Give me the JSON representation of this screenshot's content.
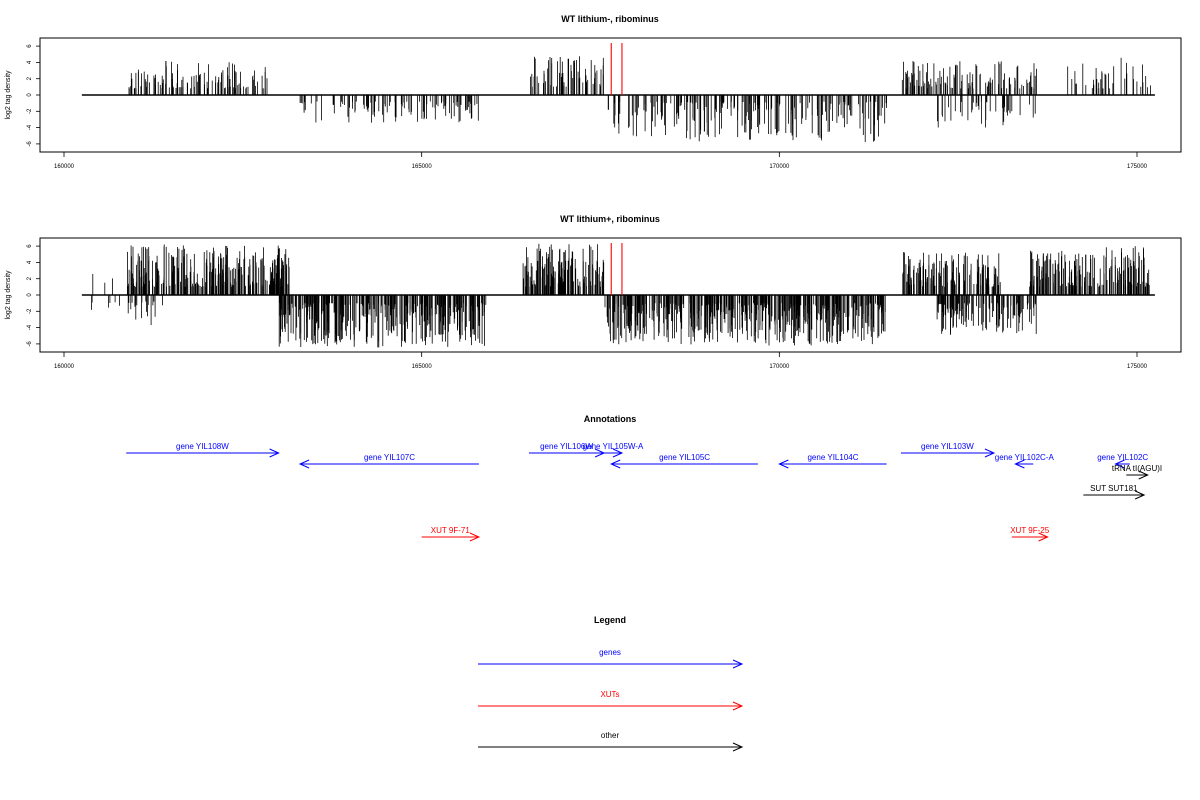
{
  "chart_data": [
    {
      "type": "bar",
      "title": "WT lithium-, ribominus",
      "xlabel": "",
      "ylabel": "log2 tag density",
      "xlim": [
        159900,
        175900
      ],
      "ylim": [
        -7,
        7
      ],
      "xticks": [
        160000,
        165000,
        170000,
        175000
      ],
      "xtick_labels": [
        "160000",
        "165000",
        "170000",
        "175000"
      ],
      "yticks": [
        6,
        4,
        2,
        0,
        -2,
        -4,
        -6
      ],
      "ytick_labels": [
        "6",
        "4",
        "2",
        "0",
        "-2",
        "-4",
        "-6"
      ],
      "baseline": [
        160250,
        175250
      ],
      "markers": [
        167650,
        167800
      ],
      "marker_color": "#ff0000",
      "bar_color": "#000000",
      "regions": [
        {
          "start": 160870,
          "end": 162850,
          "sign": 1,
          "density": 0.45,
          "max": 4.2,
          "min": 0.8
        },
        {
          "start": 163300,
          "end": 165800,
          "sign": -1,
          "density": 0.35,
          "max": 3.4,
          "min": 0.8
        },
        {
          "start": 166500,
          "end": 167550,
          "sign": 1,
          "density": 0.5,
          "max": 4.8,
          "min": 1.0
        },
        {
          "start": 167600,
          "end": 171500,
          "sign": -1,
          "density": 0.45,
          "max": 5.8,
          "min": 0.8
        },
        {
          "start": 171700,
          "end": 173600,
          "sign": 1,
          "density": 0.5,
          "max": 4.2,
          "min": 0.8
        },
        {
          "start": 172200,
          "end": 173600,
          "sign": -1,
          "density": 0.25,
          "max": 4.0,
          "min": 0.8
        },
        {
          "start": 174000,
          "end": 175200,
          "sign": 1,
          "density": 0.25,
          "max": 4.6,
          "min": 0.8
        }
      ]
    },
    {
      "type": "bar",
      "title": "WT lithium+, ribominus",
      "xlabel": "",
      "ylabel": "log2 tag density",
      "xlim": [
        159900,
        175900
      ],
      "ylim": [
        -7,
        7
      ],
      "xticks": [
        160000,
        165000,
        170000,
        175000
      ],
      "xtick_labels": [
        "160000",
        "165000",
        "170000",
        "175000"
      ],
      "yticks": [
        6,
        4,
        2,
        0,
        -2,
        -4,
        -6
      ],
      "ytick_labels": [
        "6",
        "4",
        "2",
        "0",
        "-2",
        "-4",
        "-6"
      ],
      "baseline": [
        160250,
        175250
      ],
      "markers": [
        167650,
        167800
      ],
      "marker_color": "#ff0000",
      "bar_color": "#000000",
      "regions": [
        {
          "start": 160250,
          "end": 160800,
          "sign": -1,
          "density": 0.08,
          "max": 2.0,
          "min": 0.8
        },
        {
          "start": 160350,
          "end": 160700,
          "sign": 1,
          "density": 0.05,
          "max": 3.2,
          "min": 1.5
        },
        {
          "start": 160870,
          "end": 163200,
          "sign": 1,
          "density": 1.0,
          "max": 6.2,
          "min": 1.0
        },
        {
          "start": 160870,
          "end": 161400,
          "sign": -1,
          "density": 0.3,
          "max": 4.0,
          "min": 0.8
        },
        {
          "start": 163000,
          "end": 165900,
          "sign": -1,
          "density": 1.0,
          "max": 6.5,
          "min": 1.0
        },
        {
          "start": 166400,
          "end": 167550,
          "sign": 1,
          "density": 1.0,
          "max": 6.3,
          "min": 1.0
        },
        {
          "start": 167550,
          "end": 171500,
          "sign": -1,
          "density": 1.0,
          "max": 6.2,
          "min": 1.0
        },
        {
          "start": 171700,
          "end": 173100,
          "sign": 1,
          "density": 0.8,
          "max": 5.3,
          "min": 1.0
        },
        {
          "start": 172200,
          "end": 173600,
          "sign": -1,
          "density": 0.8,
          "max": 5.0,
          "min": 1.0
        },
        {
          "start": 173500,
          "end": 175200,
          "sign": 1,
          "density": 0.85,
          "max": 6.0,
          "min": 1.0
        }
      ]
    }
  ],
  "annotations": {
    "title": "Annotations",
    "features": [
      {
        "label": "gene YIL108W",
        "start": 160870,
        "end": 163000,
        "dir": "right",
        "row": 0,
        "kind": "genes"
      },
      {
        "label": "gene YIL107C",
        "start": 163300,
        "end": 165800,
        "dir": "left",
        "row": 1,
        "kind": "genes"
      },
      {
        "label": "gene YIL106W",
        "start": 166500,
        "end": 167550,
        "dir": "right",
        "row": 0,
        "kind": "genes"
      },
      {
        "label": "gene YIL105W-A",
        "start": 167550,
        "end": 167800,
        "dir": "right",
        "row": 0,
        "kind": "genes"
      },
      {
        "label": "gene YIL105C",
        "start": 167650,
        "end": 169700,
        "dir": "left",
        "row": 1,
        "kind": "genes"
      },
      {
        "label": "gene YIL104C",
        "start": 170000,
        "end": 171500,
        "dir": "left",
        "row": 1,
        "kind": "genes"
      },
      {
        "label": "gene YIL103W",
        "start": 171700,
        "end": 173000,
        "dir": "right",
        "row": 0,
        "kind": "genes"
      },
      {
        "label": "gene YIL102C-A",
        "start": 173300,
        "end": 173550,
        "dir": "left",
        "row": 1,
        "kind": "genes"
      },
      {
        "label": "gene YIL102C",
        "start": 174700,
        "end": 174900,
        "dir": "left",
        "row": 1,
        "kind": "genes"
      },
      {
        "label": "tRNA tI(AGU)I",
        "start": 174850,
        "end": 175150,
        "dir": "right",
        "row": 2,
        "kind": "other"
      },
      {
        "label": "SUT SUT181",
        "start": 174250,
        "end": 175100,
        "dir": "right",
        "row": 3,
        "kind": "other"
      },
      {
        "label": "XUT 9F-71",
        "start": 165000,
        "end": 165800,
        "dir": "right",
        "row": 4,
        "kind": "XUTs"
      },
      {
        "label": "XUT 9F-25",
        "start": 173250,
        "end": 173750,
        "dir": "right",
        "row": 4,
        "kind": "XUTs"
      }
    ]
  },
  "legend": {
    "title": "Legend",
    "items": [
      {
        "label": "genes",
        "color": "#0000ff"
      },
      {
        "label": "XUTs",
        "color": "#ff0000"
      },
      {
        "label": "other",
        "color": "#000000"
      }
    ]
  },
  "colors": {
    "genes": "#0000ff",
    "XUTs": "#ff0000",
    "other": "#000000"
  }
}
